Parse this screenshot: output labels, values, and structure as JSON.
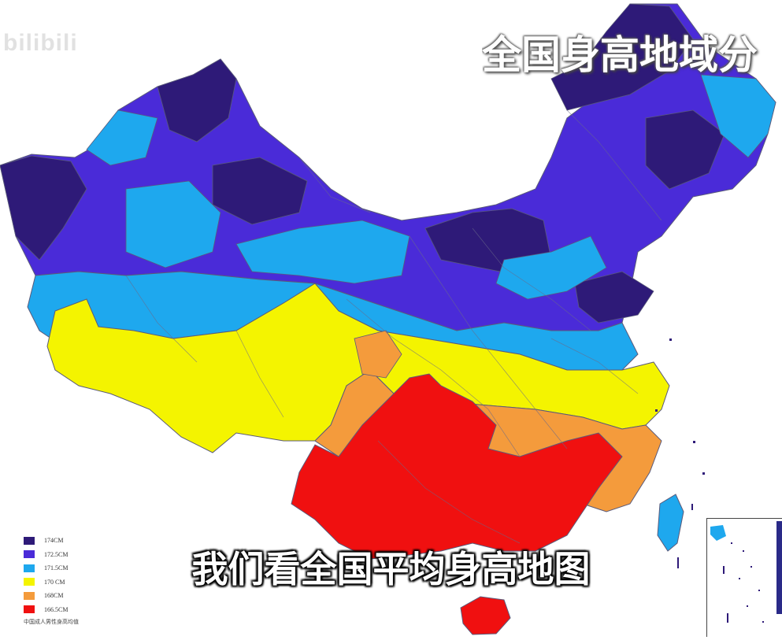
{
  "watermark": "bilibili",
  "title": "全国身高地域分",
  "subtitle": "我们看全国平均身高地图",
  "footnote": "中国成人男性身高均值",
  "colors": {
    "h174": "#2e1a78",
    "h172_5": "#4a2bd8",
    "h171_5": "#1ea8ee",
    "h170": "#f4f400",
    "h168": "#f49b3c",
    "h166_5": "#f01010",
    "border": "#5a5a7a"
  },
  "legend": [
    {
      "label": "174CM",
      "color": "#2e1a78"
    },
    {
      "label": "172.5CM",
      "color": "#4a2bd8"
    },
    {
      "label": "171.5CM",
      "color": "#1ea8ee"
    },
    {
      "label": "170 CM",
      "color": "#f4f400"
    },
    {
      "label": "168CM",
      "color": "#f49b3c"
    },
    {
      "label": "166.5CM",
      "color": "#f01010"
    }
  ]
}
